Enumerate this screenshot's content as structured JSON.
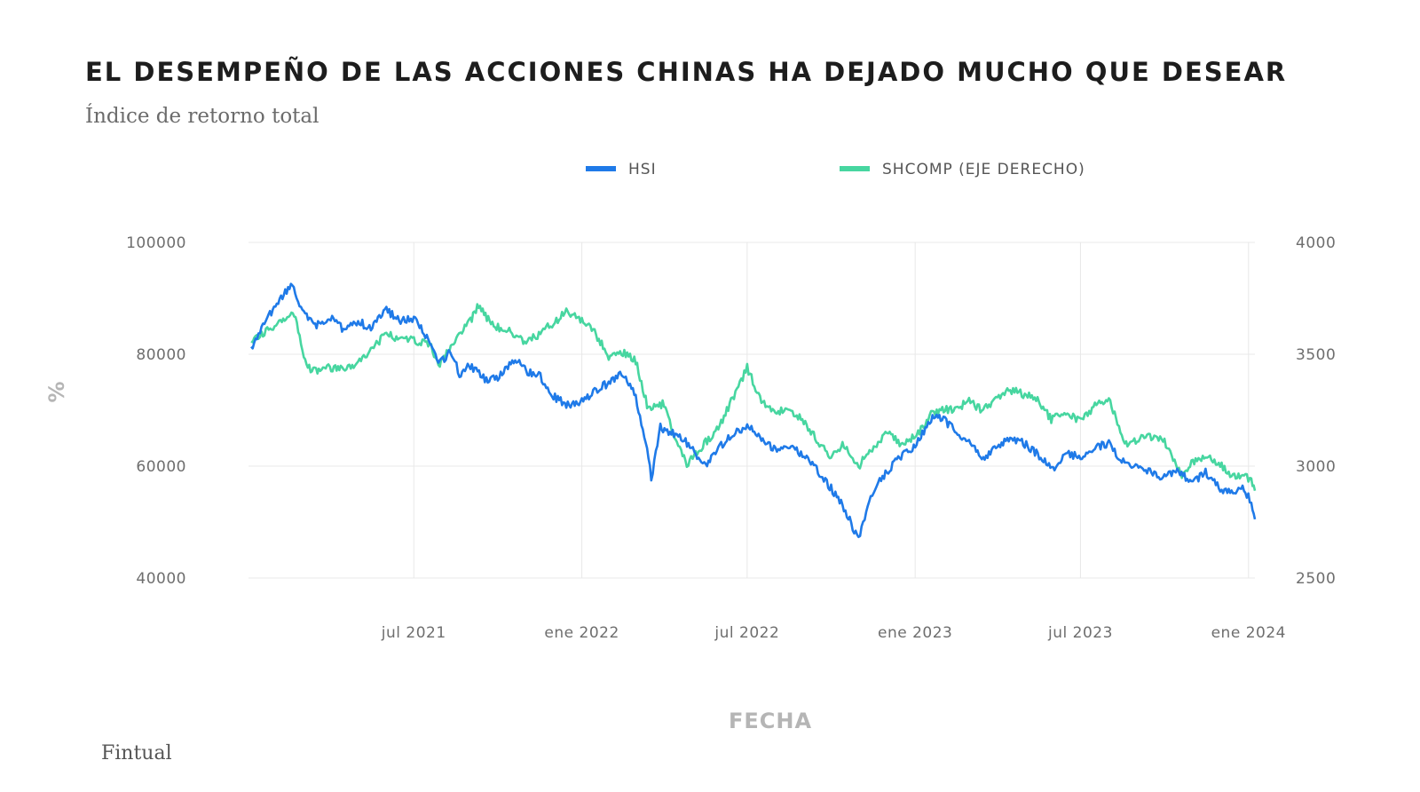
{
  "title": "EL DESEMPEÑO DE LAS ACCIONES CHINAS HA DEJADO MUCHO QUE DESEAR",
  "subtitle": "Índice de retorno total",
  "source": "Fintual",
  "colors": {
    "hsi": "#1f7ae8",
    "shcomp": "#47d6a0",
    "grid": "#e8e8e8",
    "text": "#1d1d1d"
  },
  "chart_data": {
    "type": "line",
    "title": "EL DESEMPEÑO DE LAS ACCIONES CHINAS HA DEJADO MUCHO QUE DESEAR",
    "subtitle": "Índice de retorno total",
    "xlabel": "FECHA",
    "ylabel": "%",
    "ylim_left": [
      40000,
      100000
    ],
    "ylim_right": [
      2500,
      4000
    ],
    "yticks_left": [
      40000,
      60000,
      80000,
      100000
    ],
    "yticks_right": [
      2500,
      3000,
      3500,
      4000
    ],
    "xlim": [
      "2021-01-01",
      "2024-01-08"
    ],
    "xticks": [
      {
        "date": "2021-07-01",
        "label": "jul 2021"
      },
      {
        "date": "2022-01-01",
        "label": "ene 2022"
      },
      {
        "date": "2022-07-01",
        "label": "jul 2022"
      },
      {
        "date": "2023-01-01",
        "label": "ene 2023"
      },
      {
        "date": "2023-07-01",
        "label": "jul 2023"
      },
      {
        "date": "2024-01-01",
        "label": "ene 2024"
      }
    ],
    "grid": true,
    "legend_position": "top",
    "series": [
      {
        "name": "HSI",
        "axis": "left",
        "color": "#1f7ae8",
        "points": [
          [
            "2021-01-04",
            81000
          ],
          [
            "2021-01-20",
            86000
          ],
          [
            "2021-02-01",
            89000
          ],
          [
            "2021-02-18",
            92500
          ],
          [
            "2021-03-01",
            87500
          ],
          [
            "2021-03-15",
            85000
          ],
          [
            "2021-04-01",
            86500
          ],
          [
            "2021-04-15",
            84500
          ],
          [
            "2021-05-01",
            86000
          ],
          [
            "2021-05-15",
            84500
          ],
          [
            "2021-06-01",
            88000
          ],
          [
            "2021-06-15",
            86000
          ],
          [
            "2021-07-01",
            86500
          ],
          [
            "2021-07-20",
            82000
          ],
          [
            "2021-07-28",
            78000
          ],
          [
            "2021-08-10",
            80500
          ],
          [
            "2021-08-20",
            76500
          ],
          [
            "2021-09-01",
            78000
          ],
          [
            "2021-09-20",
            75000
          ],
          [
            "2021-10-01",
            76000
          ],
          [
            "2021-10-20",
            79000
          ],
          [
            "2021-11-01",
            77000
          ],
          [
            "2021-11-15",
            76500
          ],
          [
            "2021-12-01",
            72500
          ],
          [
            "2021-12-15",
            71000
          ],
          [
            "2022-01-01",
            71500
          ],
          [
            "2022-01-15",
            73500
          ],
          [
            "2022-02-01",
            75000
          ],
          [
            "2022-02-15",
            76500
          ],
          [
            "2022-03-01",
            72500
          ],
          [
            "2022-03-15",
            62000
          ],
          [
            "2022-03-18",
            57500
          ],
          [
            "2022-03-28",
            67000
          ],
          [
            "2022-04-15",
            65500
          ],
          [
            "2022-05-01",
            63500
          ],
          [
            "2022-05-15",
            60000
          ],
          [
            "2022-06-01",
            63500
          ],
          [
            "2022-06-15",
            65500
          ],
          [
            "2022-07-01",
            67500
          ],
          [
            "2022-07-15",
            65000
          ],
          [
            "2022-08-01",
            63000
          ],
          [
            "2022-08-15",
            63500
          ],
          [
            "2022-09-01",
            62000
          ],
          [
            "2022-09-15",
            59500
          ],
          [
            "2022-10-01",
            56000
          ],
          [
            "2022-10-15",
            52500
          ],
          [
            "2022-10-31",
            47000
          ],
          [
            "2022-11-10",
            53000
          ],
          [
            "2022-11-20",
            56500
          ],
          [
            "2022-12-01",
            59000
          ],
          [
            "2022-12-15",
            61500
          ],
          [
            "2023-01-01",
            63500
          ],
          [
            "2023-01-20",
            69000
          ],
          [
            "2023-02-01",
            68500
          ],
          [
            "2023-02-15",
            66000
          ],
          [
            "2023-03-01",
            64500
          ],
          [
            "2023-03-15",
            61000
          ],
          [
            "2023-04-01",
            63500
          ],
          [
            "2023-04-15",
            65000
          ],
          [
            "2023-05-01",
            64000
          ],
          [
            "2023-05-20",
            61500
          ],
          [
            "2023-06-01",
            59500
          ],
          [
            "2023-06-15",
            62500
          ],
          [
            "2023-07-01",
            61500
          ],
          [
            "2023-07-20",
            63500
          ],
          [
            "2023-08-01",
            64000
          ],
          [
            "2023-08-20",
            60000
          ],
          [
            "2023-09-01",
            60500
          ],
          [
            "2023-09-15",
            59000
          ],
          [
            "2023-10-01",
            58000
          ],
          [
            "2023-10-15",
            59000
          ],
          [
            "2023-11-01",
            57000
          ],
          [
            "2023-11-15",
            59000
          ],
          [
            "2023-12-01",
            56000
          ],
          [
            "2023-12-15",
            55000
          ],
          [
            "2023-12-27",
            56000
          ],
          [
            "2024-01-04",
            53500
          ],
          [
            "2024-01-08",
            50500
          ]
        ]
      },
      {
        "name": "SHCOMP (EJE DERECHO)",
        "axis": "right",
        "color": "#47d6a0",
        "points": [
          [
            "2021-01-04",
            3550
          ],
          [
            "2021-01-20",
            3600
          ],
          [
            "2021-02-05",
            3650
          ],
          [
            "2021-02-20",
            3680
          ],
          [
            "2021-03-01",
            3520
          ],
          [
            "2021-03-10",
            3420
          ],
          [
            "2021-03-25",
            3440
          ],
          [
            "2021-04-15",
            3430
          ],
          [
            "2021-05-01",
            3460
          ],
          [
            "2021-05-15",
            3520
          ],
          [
            "2021-06-01",
            3590
          ],
          [
            "2021-06-15",
            3570
          ],
          [
            "2021-07-01",
            3560
          ],
          [
            "2021-07-20",
            3540
          ],
          [
            "2021-07-28",
            3450
          ],
          [
            "2021-08-15",
            3560
          ],
          [
            "2021-09-01",
            3650
          ],
          [
            "2021-09-10",
            3720
          ],
          [
            "2021-09-25",
            3630
          ],
          [
            "2021-10-15",
            3600
          ],
          [
            "2021-11-01",
            3550
          ],
          [
            "2021-11-15",
            3590
          ],
          [
            "2021-12-01",
            3640
          ],
          [
            "2021-12-15",
            3690
          ],
          [
            "2022-01-01",
            3650
          ],
          [
            "2022-01-15",
            3600
          ],
          [
            "2022-02-01",
            3480
          ],
          [
            "2022-02-15",
            3510
          ],
          [
            "2022-03-01",
            3470
          ],
          [
            "2022-03-15",
            3250
          ],
          [
            "2022-04-01",
            3280
          ],
          [
            "2022-04-15",
            3100
          ],
          [
            "2022-04-26",
            3010
          ],
          [
            "2022-05-15",
            3100
          ],
          [
            "2022-06-01",
            3180
          ],
          [
            "2022-06-15",
            3300
          ],
          [
            "2022-07-01",
            3440
          ],
          [
            "2022-07-15",
            3300
          ],
          [
            "2022-08-01",
            3240
          ],
          [
            "2022-08-15",
            3260
          ],
          [
            "2022-09-01",
            3200
          ],
          [
            "2022-09-15",
            3120
          ],
          [
            "2022-10-01",
            3040
          ],
          [
            "2022-10-15",
            3100
          ],
          [
            "2022-10-31",
            3000
          ],
          [
            "2022-11-15",
            3080
          ],
          [
            "2022-12-01",
            3150
          ],
          [
            "2022-12-15",
            3100
          ],
          [
            "2023-01-01",
            3130
          ],
          [
            "2023-01-20",
            3240
          ],
          [
            "2023-02-15",
            3260
          ],
          [
            "2023-03-01",
            3290
          ],
          [
            "2023-03-15",
            3250
          ],
          [
            "2023-04-01",
            3300
          ],
          [
            "2023-04-15",
            3340
          ],
          [
            "2023-05-01",
            3320
          ],
          [
            "2023-05-15",
            3300
          ],
          [
            "2023-05-30",
            3210
          ],
          [
            "2023-06-15",
            3240
          ],
          [
            "2023-07-01",
            3200
          ],
          [
            "2023-07-20",
            3280
          ],
          [
            "2023-08-01",
            3300
          ],
          [
            "2023-08-20",
            3100
          ],
          [
            "2023-09-01",
            3120
          ],
          [
            "2023-09-15",
            3130
          ],
          [
            "2023-10-01",
            3110
          ],
          [
            "2023-10-20",
            2950
          ],
          [
            "2023-11-01",
            3020
          ],
          [
            "2023-11-15",
            3050
          ],
          [
            "2023-12-01",
            3010
          ],
          [
            "2023-12-15",
            2950
          ],
          [
            "2023-12-27",
            2960
          ],
          [
            "2024-01-04",
            2930
          ],
          [
            "2024-01-08",
            2890
          ]
        ]
      }
    ]
  }
}
